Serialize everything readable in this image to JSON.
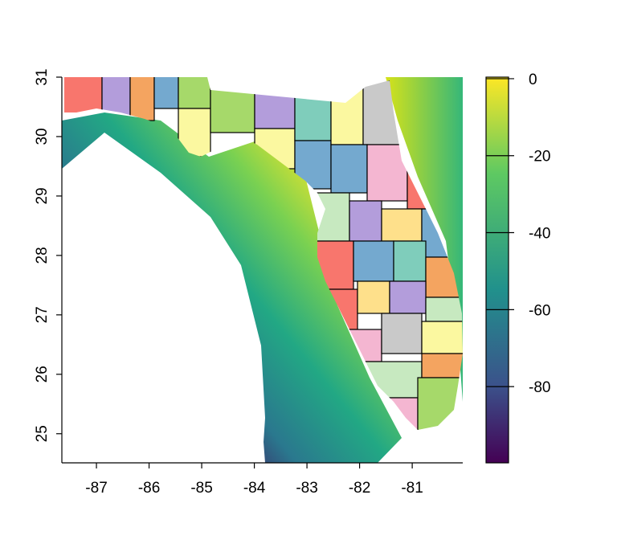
{
  "map": {
    "type": "raster-map",
    "xlim": [
      -87.657,
      -80.04
    ],
    "ylim": [
      24.51,
      31.0
    ],
    "xticks": [
      -87,
      -86,
      -85,
      -84,
      -83,
      -82,
      -81
    ],
    "yticks": [
      25,
      26,
      27,
      28,
      29,
      30,
      31
    ],
    "colorbar": {
      "lim": [
        -99.8,
        0.4
      ],
      "ticks": [
        0,
        -20,
        -40,
        -60,
        -80
      ]
    }
  }
}
